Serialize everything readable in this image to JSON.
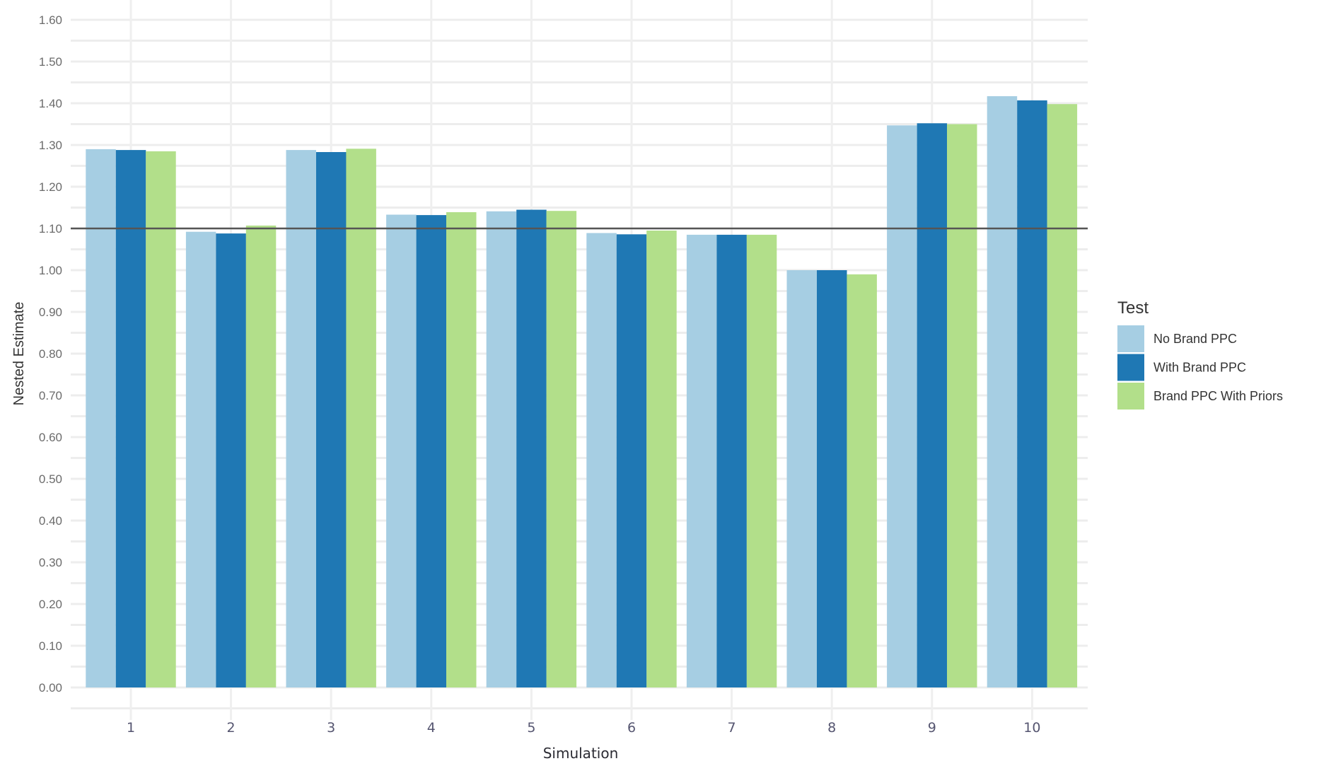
{
  "chart_data": {
    "type": "bar",
    "title": "",
    "xlabel": "Simulation",
    "ylabel": "Nested Estimate",
    "categories": [
      "1",
      "2",
      "3",
      "4",
      "5",
      "6",
      "7",
      "8",
      "9",
      "10"
    ],
    "series": [
      {
        "name": "No Brand PPC",
        "color": "#a6cee3",
        "values": [
          1.29,
          1.092,
          1.288,
          1.133,
          1.141,
          1.089,
          1.085,
          1.0,
          1.347,
          1.417
        ]
      },
      {
        "name": "With Brand PPC",
        "color": "#1f78b4",
        "values": [
          1.288,
          1.088,
          1.283,
          1.132,
          1.145,
          1.086,
          1.085,
          1.0,
          1.352,
          1.407
        ]
      },
      {
        "name": "Brand PPC With Priors",
        "color": "#b2df8a",
        "values": [
          1.285,
          1.107,
          1.291,
          1.139,
          1.142,
          1.095,
          1.085,
          0.99,
          1.35,
          1.398
        ]
      }
    ],
    "ylim": [
      0,
      1.6
    ],
    "yticks": [
      "0.00",
      "0.10",
      "0.20",
      "0.30",
      "0.40",
      "0.50",
      "0.60",
      "0.70",
      "0.80",
      "0.90",
      "1.00",
      "1.10",
      "1.20",
      "1.30",
      "1.40",
      "1.50",
      "1.60"
    ],
    "reference_line": {
      "y": 1.1,
      "color": "#555555"
    },
    "grid": true,
    "legend": {
      "title": "Test",
      "position": "right"
    }
  }
}
